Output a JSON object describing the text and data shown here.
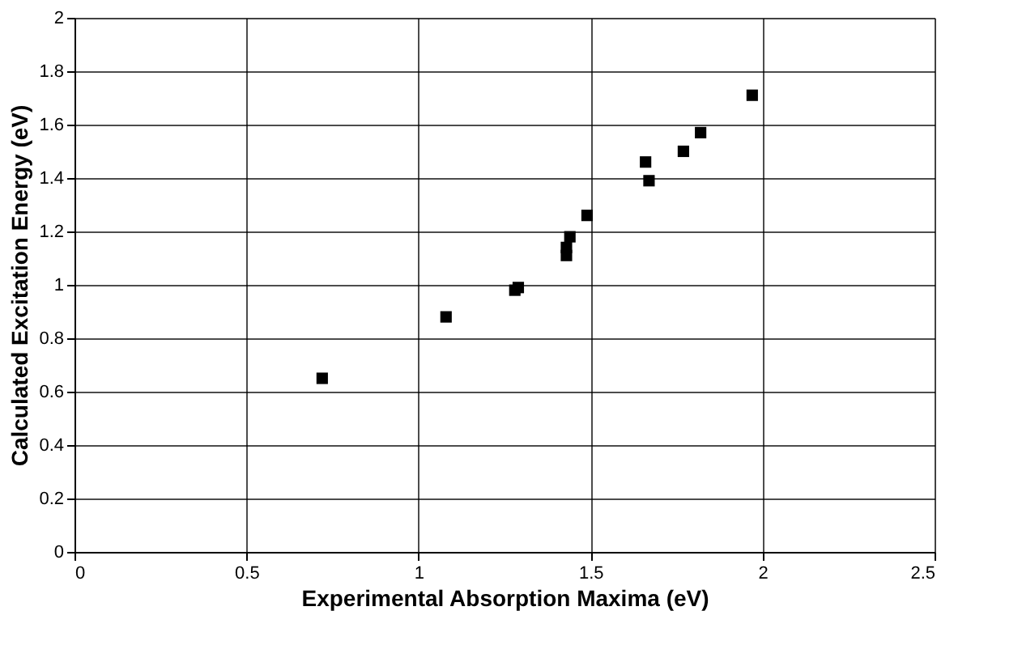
{
  "chart_data": {
    "type": "scatter",
    "xlabel": "Experimental Absorption Maxima (eV)",
    "ylabel": "Calculated Excitation Energy (eV)",
    "x": [
      0.72,
      1.08,
      1.28,
      1.29,
      1.43,
      1.43,
      1.44,
      1.49,
      1.66,
      1.67,
      1.77,
      1.82,
      1.97
    ],
    "series": [
      {
        "color": "#000000",
        "values": [
          0.65,
          0.88,
          0.98,
          0.99,
          1.11,
          1.14,
          1.18,
          1.26,
          1.46,
          1.39,
          1.5,
          1.57,
          1.71
        ]
      }
    ],
    "xlim": [
      0,
      2.5
    ],
    "xticks": [
      0,
      0.5,
      1,
      1.5,
      2,
      2.5
    ],
    "ylim": [
      0,
      2
    ],
    "yticks": [
      0,
      0.2,
      0.4,
      0.6,
      0.8,
      1,
      1.2,
      1.4,
      1.6,
      1.8,
      2
    ],
    "grid": true,
    "marker": "square"
  }
}
